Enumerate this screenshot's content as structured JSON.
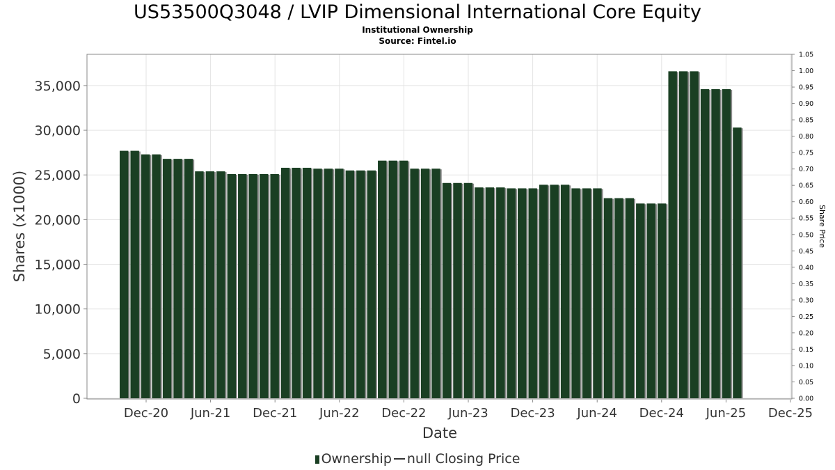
{
  "header": {
    "title": "US53500Q3048 / LVIP Dimensional International Core Equity",
    "subtitle": "Institutional Ownership",
    "source": "Source: Fintel.io"
  },
  "legend": {
    "ownership_label": "Ownership",
    "price_label": "null Closing Price"
  },
  "colors": {
    "bar": "#1a3f23",
    "bar_shadow": "#8c8c8c",
    "grid": "#e3e3e3",
    "axis": "#888888",
    "text": "#333333"
  },
  "chart_data": {
    "type": "bar",
    "title": "US53500Q3048 / LVIP Dimensional International Core Equity",
    "xlabel": "Date",
    "ylabel": "Shares (x1000)",
    "y2label": "Share Price",
    "ylim": [
      0,
      38500
    ],
    "y2lim": [
      0,
      1.05
    ],
    "grid": true,
    "legend_position": "bottom",
    "x_ticks": [
      "Dec-20",
      "Jun-21",
      "Dec-21",
      "Jun-22",
      "Dec-22",
      "Jun-23",
      "Dec-23",
      "Jun-24",
      "Dec-24",
      "Jun-25",
      "Dec-25"
    ],
    "y_ticks": [
      "0",
      "5,000",
      "10,000",
      "15,000",
      "20,000",
      "25,000",
      "30,000",
      "35,000"
    ],
    "y2_ticks": [
      "0.00",
      "0.05",
      "0.10",
      "0.15",
      "0.20",
      "0.25",
      "0.30",
      "0.35",
      "0.40",
      "0.45",
      "0.50",
      "0.55",
      "0.60",
      "0.65",
      "0.70",
      "0.75",
      "0.80",
      "0.85",
      "0.90",
      "0.95",
      "1.00",
      "1.05"
    ],
    "series": [
      {
        "name": "Ownership",
        "values": [
          27700,
          27700,
          27300,
          27300,
          26800,
          26800,
          26800,
          25400,
          25400,
          25400,
          25100,
          25100,
          25100,
          25100,
          25100,
          25800,
          25800,
          25800,
          25700,
          25700,
          25700,
          25500,
          25500,
          25500,
          26600,
          26600,
          26600,
          25700,
          25700,
          25700,
          24100,
          24100,
          24100,
          23600,
          23600,
          23600,
          23500,
          23500,
          23500,
          23900,
          23900,
          23900,
          23500,
          23500,
          23500,
          22400,
          22400,
          22400,
          21800,
          21800,
          21800,
          36600,
          36600,
          36600,
          34600,
          34600,
          34600,
          30300
        ]
      },
      {
        "name": "null Closing Price",
        "values": []
      }
    ]
  }
}
